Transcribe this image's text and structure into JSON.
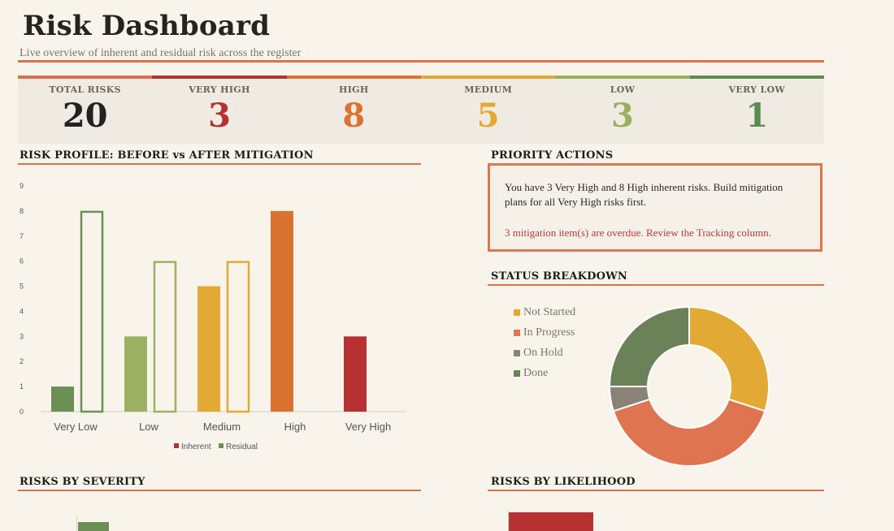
{
  "header": {
    "title": "Risk Dashboard",
    "subtitle": "Live overview of inherent and residual risk across the register"
  },
  "kpis": [
    {
      "label": "TOTAL RISKS",
      "value": "20",
      "color": "#222222",
      "bar": "#d9714e"
    },
    {
      "label": "VERY HIGH",
      "value": "3",
      "color": "#b63232",
      "bar": "#b63232"
    },
    {
      "label": "HIGH",
      "value": "8",
      "color": "#d9732f",
      "bar": "#d9732f"
    },
    {
      "label": "MEDIUM",
      "value": "5",
      "color": "#e2aa35",
      "bar": "#e2aa35"
    },
    {
      "label": "LOW",
      "value": "3",
      "color": "#9aae5c",
      "bar": "#9aae5c"
    },
    {
      "label": "VERY LOW",
      "value": "1",
      "color": "#5f8a4f",
      "bar": "#5f8a4f"
    }
  ],
  "sections": {
    "risk_profile": "RISK PROFILE: BEFORE vs AFTER MITIGATION",
    "priority_actions": "PRIORITY ACTIONS",
    "status_breakdown": "STATUS BREAKDOWN",
    "risks_by_severity": "RISKS BY SEVERITY",
    "risks_by_likelihood": "RISKS BY LIKELIHOOD"
  },
  "priority": {
    "message1": "You have 3 Very High and 8 High inherent risks. Build mitigation plans for all Very High risks first.",
    "message2": "3 mitigation item(s) are overdue. Review the Tracking column."
  },
  "chart_data": [
    {
      "type": "bar",
      "categories": [
        "Very Low",
        "Low",
        "Medium",
        "High",
        "Very High"
      ],
      "series": [
        {
          "name": "Inherent",
          "values": [
            1,
            3,
            5,
            8,
            3
          ]
        },
        {
          "name": "Residual",
          "values": [
            8,
            6,
            6,
            0,
            0
          ]
        }
      ],
      "category_colors": [
        "#6b8f55",
        "#9bb062",
        "#e2aa35",
        "#d9732f",
        "#b63232"
      ],
      "legend_colors": {
        "Inherent": "#b63232",
        "Residual": "#6b8f55"
      },
      "yticks": [
        0,
        1,
        2,
        3,
        4,
        5,
        6,
        7,
        8,
        9
      ],
      "ylim": [
        0,
        9
      ],
      "legend": "bottom",
      "grid": false
    },
    {
      "type": "pie",
      "variant": "donut",
      "labels": [
        "Not Started",
        "In Progress",
        "On Hold",
        "Done"
      ],
      "values": [
        6,
        8,
        1,
        5
      ],
      "colors": [
        "#e2aa35",
        "#df7451",
        "#8a8278",
        "#6b8157"
      ],
      "legend": "left"
    }
  ]
}
